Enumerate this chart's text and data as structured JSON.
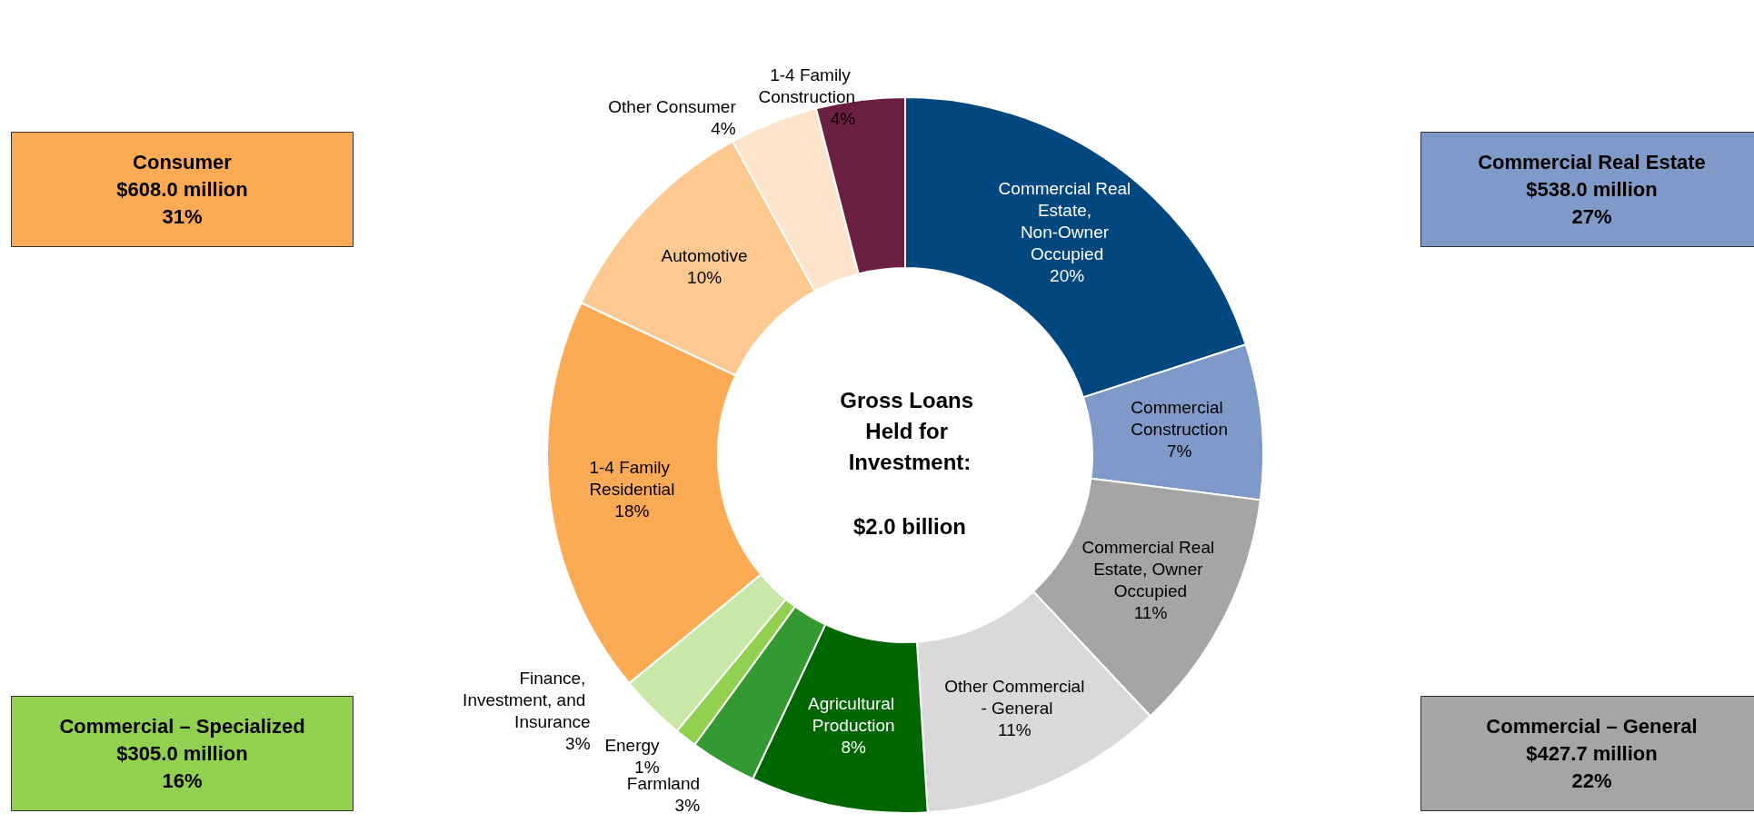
{
  "chart_data": {
    "type": "donut",
    "title": "Gross Loans Held for Investment:",
    "subtitle": "$2.0 billion",
    "categories": [
      "Commercial Real Estate, Non-Owner Occupied",
      "Commercial Construction",
      "Commercial Real Estate, Owner Occupied",
      "Other Commercial - General",
      "Agricultural Production",
      "Farmland",
      "Energy",
      "Finance, Investment, and Insurance",
      "1-4 Family Residential",
      "Automotive",
      "Other Consumer",
      "1-4 Family Construction"
    ],
    "values": [
      20,
      7,
      11,
      11,
      8,
      3,
      1,
      3,
      18,
      10,
      4,
      4
    ],
    "value_labels": [
      "20%",
      "7%",
      "11%",
      "11%",
      "8%",
      "3%",
      "1%",
      "3%",
      "18%",
      "10%",
      "4%",
      "4%"
    ],
    "colors": [
      "#00467f",
      "#7f9ac9",
      "#a5a5a5",
      "#d9d9d9",
      "#006600",
      "#339933",
      "#92d050",
      "#c9e7a7",
      "#fdaa55",
      "#fec990",
      "#fde4cb",
      "#6b1f43"
    ],
    "annotations": [
      "Consumer\n$608.0 million\n31%",
      "Commercial Real Estate\n$538.0 million\n27%",
      "Commercial – Specialized\n$305.0 million\n16%",
      "Commercial – General\n$427.7 million\n22%"
    ],
    "legend": false
  }
}
